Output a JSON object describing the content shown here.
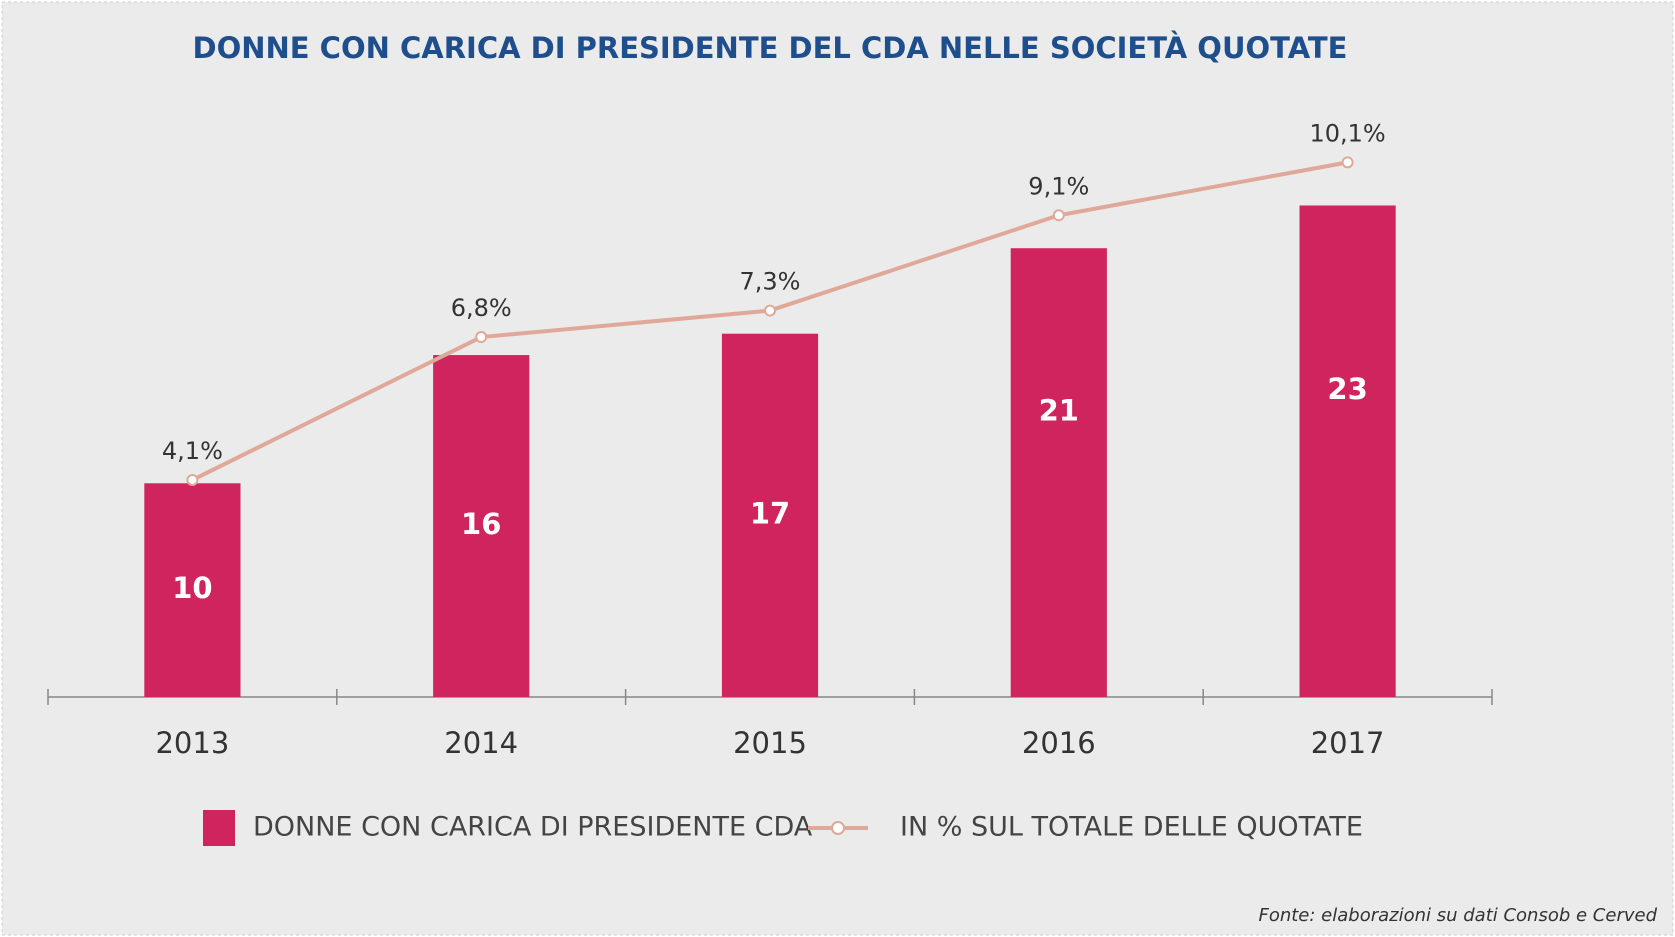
{
  "chart_data": {
    "type": "bar",
    "title": "DONNE CON CARICA DI PRESIDENTE DEL CDA NELLE SOCIETÀ QUOTATE",
    "categories": [
      "2013",
      "2014",
      "2015",
      "2016",
      "2017"
    ],
    "series": [
      {
        "name": "DONNE CON CARICA DI PRESIDENTE CDA",
        "color": "#d0245f",
        "values": [
          10,
          16,
          17,
          21,
          23
        ]
      },
      {
        "name": "IN % SUL TOTALE DELLE QUOTATE",
        "type": "line",
        "axis": "y2",
        "color": "#e0a898",
        "values": [
          4.1,
          6.8,
          7.3,
          9.1,
          10.1
        ],
        "value_labels": [
          "4,1%",
          "6,8%",
          "7,3%",
          "9,1%",
          "10,1%"
        ]
      }
    ],
    "ylim": [
      0,
      27
    ],
    "y2lim": [
      0,
      10.9
    ],
    "legend": "bottom",
    "source": "Fonte: elaborazioni su dati Consob e Cerved"
  }
}
